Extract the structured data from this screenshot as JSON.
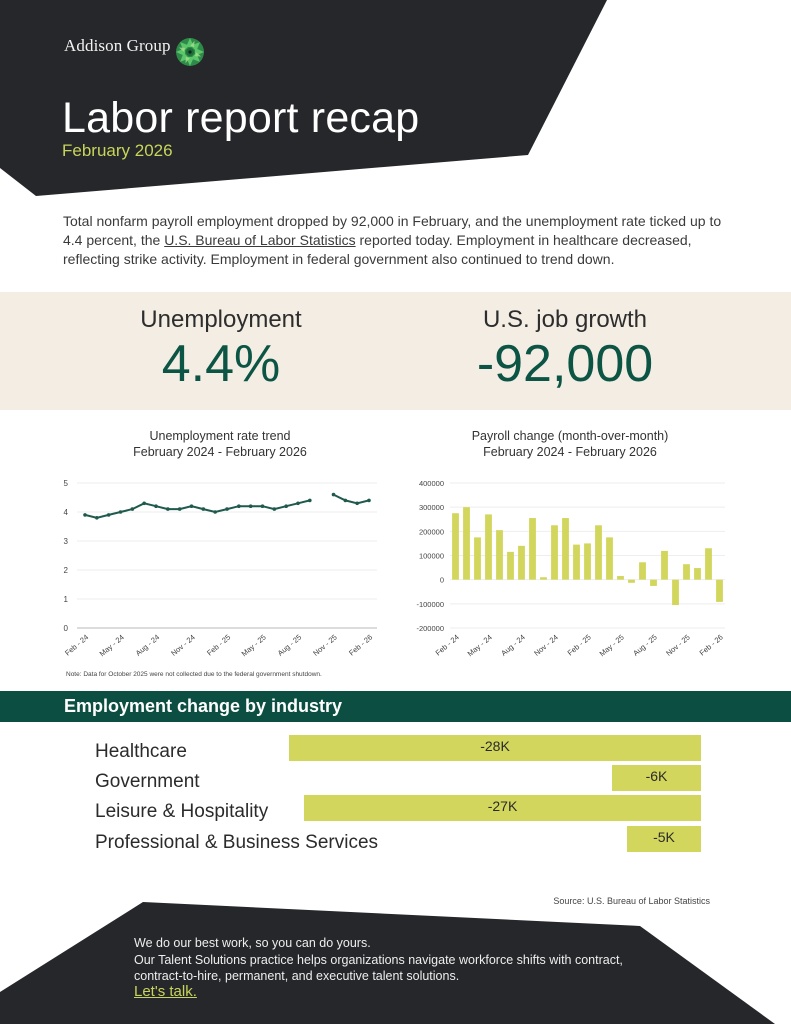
{
  "brand": {
    "name": "Addison Group",
    "logo_icon": "green-rosette-logo-icon",
    "colors": {
      "dark": "#25272a",
      "accent_lime": "#c9d45a",
      "bar_lime": "#d2d65c",
      "deep_green": "#0c5444",
      "band_green": "#0c4f42",
      "cream": "#f3ede4"
    }
  },
  "header": {
    "title": "Labor report recap",
    "subtitle": "February 2026"
  },
  "intro": {
    "text_before_link": "Total nonfarm payroll employment dropped by 92,000 in February, and the unemployment rate ticked up to 4.4 percent, the ",
    "link_text": "U.S. Bureau of Labor Statistics",
    "text_after_link": " reported today. Employment in healthcare decreased, reflecting strike activity. Employment in federal government also continued to trend down."
  },
  "kpis": {
    "unemployment": {
      "label": "Unemployment",
      "value": "4.4%"
    },
    "job_growth": {
      "label": "U.S. job growth",
      "value": "-92,000"
    }
  },
  "chart_data": [
    {
      "type": "line",
      "title": "Unemployment rate trend",
      "subtitle": "February 2024 - February 2026",
      "xlabel": "",
      "ylabel": "",
      "ylim": [
        0,
        5
      ],
      "yticks": [
        0,
        1,
        2,
        3,
        4,
        5
      ],
      "grid": true,
      "x": [
        "Feb - 24",
        "Mar - 24",
        "Apr - 24",
        "May - 24",
        "Jun - 24",
        "Jul - 24",
        "Aug - 24",
        "Sep - 24",
        "Oct - 24",
        "Nov - 24",
        "Dec - 24",
        "Jan - 25",
        "Feb - 25",
        "Mar - 25",
        "Apr - 25",
        "May - 25",
        "Jun - 25",
        "Jul - 25",
        "Aug - 25",
        "Sep - 25",
        "Oct - 25",
        "Nov - 25",
        "Dec - 25",
        "Jan - 26",
        "Feb - 26"
      ],
      "xtick_labels": [
        "Feb - 24",
        "May - 24",
        "Aug - 24",
        "Nov - 24",
        "Feb - 25",
        "May - 25",
        "Aug - 25",
        "Nov - 25",
        "Feb - 26"
      ],
      "values": [
        3.9,
        3.8,
        3.9,
        4.0,
        4.1,
        4.3,
        4.2,
        4.1,
        4.1,
        4.2,
        4.1,
        4.0,
        4.1,
        4.2,
        4.2,
        4.2,
        4.1,
        4.2,
        4.3,
        4.4,
        null,
        4.6,
        4.4,
        4.3,
        4.4
      ],
      "color": "#1f5a4c",
      "note": "Note: Data for October 2025 were not collected due to the federal government shutdown."
    },
    {
      "type": "bar",
      "title": "Payroll change (month-over-month)",
      "subtitle": "February 2024 - February 2026",
      "xlabel": "",
      "ylabel": "",
      "ylim": [
        -200000,
        400000
      ],
      "yticks": [
        -200000,
        -100000,
        0,
        100000,
        200000,
        300000,
        400000
      ],
      "grid": true,
      "categories": [
        "Feb - 24",
        "Mar - 24",
        "Apr - 24",
        "May - 24",
        "Jun - 24",
        "Jul - 24",
        "Aug - 24",
        "Sep - 24",
        "Oct - 24",
        "Nov - 24",
        "Dec - 24",
        "Jan - 25",
        "Feb - 25",
        "Mar - 25",
        "Apr - 25",
        "May - 25",
        "Jun - 25",
        "Jul - 25",
        "Aug - 25",
        "Sep - 25",
        "Oct - 25",
        "Nov - 25",
        "Dec - 25",
        "Jan - 26",
        "Feb - 26"
      ],
      "xtick_labels": [
        "Feb - 24",
        "May - 24",
        "Aug - 24",
        "Nov - 24",
        "Feb - 25",
        "May - 25",
        "Aug - 25",
        "Nov - 25",
        "Feb - 26"
      ],
      "values": [
        275000,
        300000,
        175000,
        270000,
        205000,
        115000,
        140000,
        255000,
        10000,
        225000,
        255000,
        145000,
        150000,
        225000,
        175000,
        15000,
        -13000,
        72000,
        -26000,
        119000,
        -105000,
        64000,
        48000,
        130000,
        -92000
      ],
      "color": "#d2d65c"
    },
    {
      "type": "bar",
      "orientation": "horizontal",
      "title": "Employment change by industry",
      "categories": [
        "Healthcare",
        "Government",
        "Leisure & Hospitality",
        "Professional & Business Services"
      ],
      "values": [
        -28000,
        -6000,
        -27000,
        -5000
      ],
      "labels": [
        "-28K",
        "-6K",
        "-27K",
        "-5K"
      ],
      "color": "#d2d65c"
    }
  ],
  "industry": {
    "title": "Employment change by industry",
    "rows": [
      {
        "label": "Healthcare",
        "value": "-28K"
      },
      {
        "label": "Government",
        "value": "-6K"
      },
      {
        "label": "Leisure & Hospitality",
        "value": "-27K"
      },
      {
        "label": "Professional & Business Services",
        "value": "-5K"
      }
    ],
    "source": "Source: U.S. Bureau of Labor Statistics"
  },
  "footer": {
    "line1": "We do our best work, so you can do yours.",
    "line2": "Our Talent Solutions practice helps organizations navigate workforce shifts with contract, contract-to-hire, permanent, and executive talent solutions.",
    "cta": "Let's talk."
  }
}
